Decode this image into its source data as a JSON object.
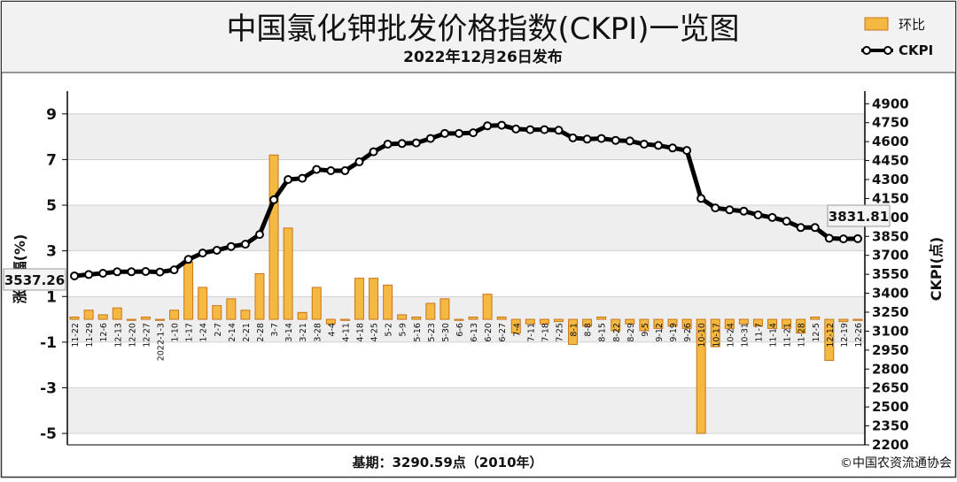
{
  "header": {
    "title": "中国氯化钾批发价格指数(CKPI)一览图",
    "subtitle": "2022年12月26日发布"
  },
  "legend": {
    "bar_label": "环比",
    "line_label": "CKPI"
  },
  "footer": {
    "base": "基期：3290.59点（2010年）",
    "copyright": "©中国农资流通协会"
  },
  "colors": {
    "bar_fill": "#f5b942",
    "bar_edge": "#c8751a",
    "line": "#000000",
    "plot_band": "#eeeeee",
    "header_bg": "#f2f2f2"
  },
  "chart_data": {
    "type": "bar",
    "categories": [
      "11-22",
      "11-29",
      "12-6",
      "12-13",
      "12-20",
      "12-27",
      "2022-1-3",
      "1-10",
      "1-17",
      "1-24",
      "2-7",
      "2-14",
      "2-21",
      "2-28",
      "3-7",
      "3-14",
      "3-21",
      "3-28",
      "4-4",
      "4-11",
      "4-18",
      "4-25",
      "5-2",
      "5-9",
      "5-16",
      "5-23",
      "5-30",
      "6-6",
      "6-13",
      "6-20",
      "6-27",
      "7-4",
      "7-11",
      "7-18",
      "7-25",
      "8-1",
      "8-8",
      "8-15",
      "8-22",
      "8-29",
      "9-5",
      "9-12",
      "9-19",
      "9-26",
      "10-10",
      "10-17",
      "10-24",
      "10-31",
      "11-7",
      "11-14",
      "11-21",
      "11-28",
      "12-5",
      "12-12",
      "12-19",
      "12-26"
    ],
    "series": [
      {
        "name": "环比",
        "axis": "left",
        "values": [
          0.1,
          0.4,
          0.2,
          0.5,
          0.0,
          0.1,
          0.0,
          0.4,
          2.5,
          1.4,
          0.6,
          0.9,
          0.4,
          2.0,
          7.2,
          4.0,
          0.3,
          1.4,
          -0.2,
          0.0,
          1.8,
          1.8,
          1.5,
          0.2,
          0.1,
          0.7,
          0.9,
          0.0,
          0.1,
          1.1,
          0.1,
          -0.6,
          -0.2,
          -0.2,
          -0.1,
          -1.1,
          -0.3,
          0.1,
          -0.5,
          -0.2,
          -0.5,
          -0.4,
          -0.3,
          -0.4,
          -5.0,
          -1.2,
          -0.4,
          -0.2,
          -0.3,
          -0.4,
          -0.4,
          -0.6,
          0.1,
          -1.8,
          -0.1,
          0.0
        ]
      },
      {
        "name": "CKPI",
        "axis": "right",
        "values": [
          3537.26,
          3548,
          3558,
          3570,
          3570,
          3572,
          3568,
          3585,
          3668,
          3718,
          3740,
          3770,
          3788,
          3865,
          4140,
          4300,
          4310,
          4380,
          4370,
          4370,
          4440,
          4520,
          4580,
          4585,
          4590,
          4625,
          4665,
          4665,
          4670,
          4725,
          4730,
          4700,
          4695,
          4695,
          4690,
          4630,
          4620,
          4625,
          4610,
          4605,
          4580,
          4570,
          4550,
          4530,
          4150,
          4075,
          4060,
          4050,
          4020,
          4000,
          3970,
          3920,
          3920,
          3835,
          3830,
          3831.81
        ]
      }
    ],
    "callouts": {
      "first": "3537.26",
      "last": "3831.81"
    },
    "ylabel_left": "涨跌幅(%)",
    "ylabel_right": "CKPI(点)",
    "ylim_left": [
      -5.5,
      10
    ],
    "ylim_right": [
      2200,
      5000
    ],
    "yticks_left": [
      9,
      7,
      5,
      3,
      1,
      -1,
      -3,
      -5
    ],
    "yticks_right": [
      4900,
      4750,
      4600,
      4450,
      4300,
      4150,
      4000,
      3850,
      3700,
      3550,
      3400,
      3250,
      3100,
      2950,
      2800,
      2650,
      2500,
      2350,
      2200
    ],
    "legend_position": "top-right"
  }
}
